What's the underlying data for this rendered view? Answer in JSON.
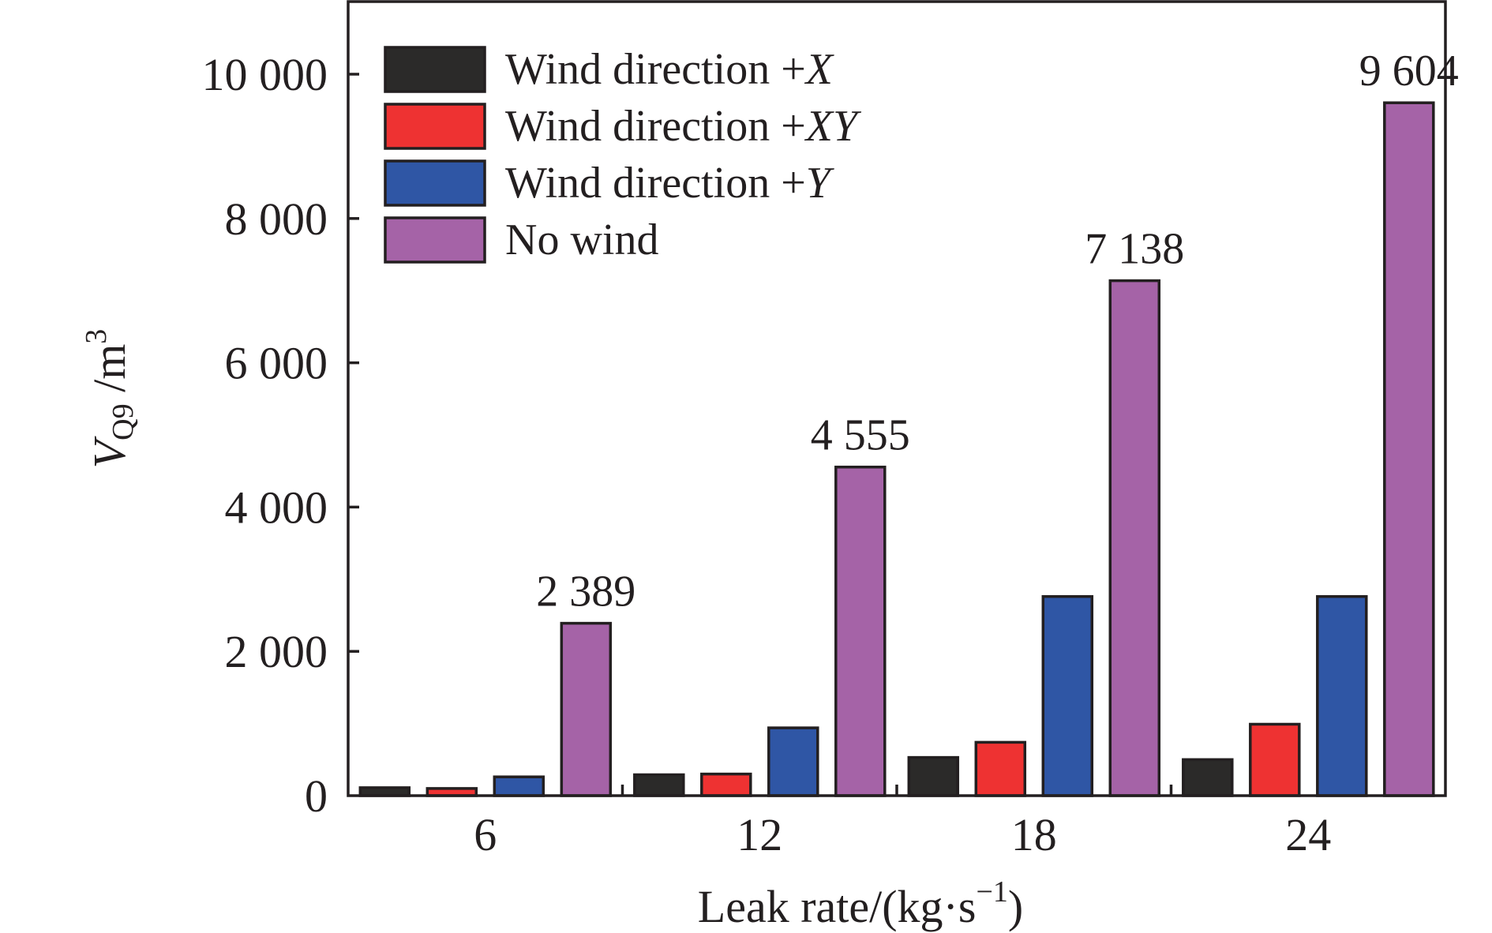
{
  "chart_data": {
    "type": "bar",
    "categories": [
      "6",
      "12",
      "18",
      "24"
    ],
    "xlabel_main": "Leak rate/(kg·s",
    "xlabel_exp": "−1",
    "xlabel_close": ")",
    "ylabel_var": "V",
    "ylabel_sub": "Q9",
    "ylabel_unit": " /m",
    "ylabel_exp": "3",
    "ylim": [
      0,
      11000
    ],
    "yticks": [
      0,
      2000,
      4000,
      6000,
      8000,
      10000
    ],
    "ytick_labels": [
      "0",
      "2 000",
      "4 000",
      "6 000",
      "8 000",
      "10 000"
    ],
    "series": [
      {
        "name_prefix": "Wind direction +",
        "name_var": "X",
        "color": "#2b2a29",
        "values": [
          110,
          290,
          530,
          500
        ]
      },
      {
        "name_prefix": "Wind direction +",
        "name_var": "XY",
        "color": "#ee3232",
        "values": [
          100,
          300,
          740,
          990
        ]
      },
      {
        "name_prefix": "Wind direction +",
        "name_var": "Y",
        "color": "#2f56a5",
        "values": [
          260,
          940,
          2760,
          2760
        ]
      },
      {
        "name_prefix": "No wind",
        "name_var": "",
        "color": "#a563a7",
        "values": [
          2389,
          4555,
          7138,
          9604
        ]
      }
    ],
    "data_labels": [
      "2 389",
      "4 555",
      "7 138",
      "9 604"
    ],
    "legend_position": "top-left",
    "grid": false
  }
}
